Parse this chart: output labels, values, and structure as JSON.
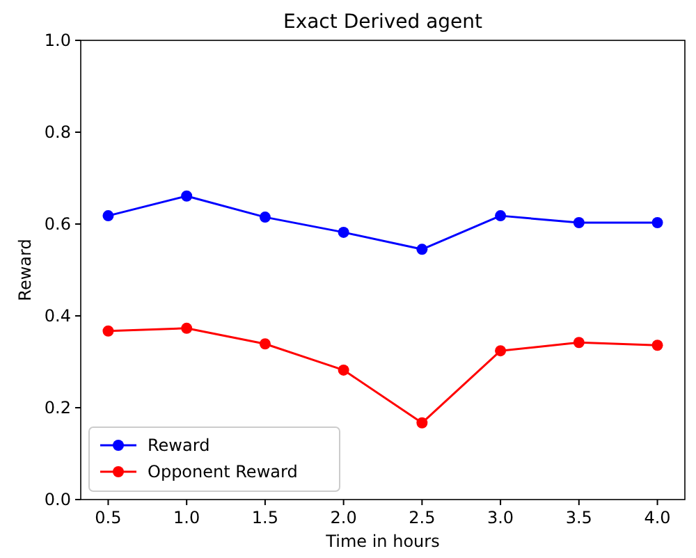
{
  "chart_data": {
    "type": "line",
    "title": "Exact Derived agent",
    "xlabel": "Time in hours",
    "ylabel": "Reward",
    "x": [
      0.5,
      1.0,
      1.5,
      2.0,
      2.5,
      3.0,
      3.5,
      4.0
    ],
    "series": [
      {
        "name": "Reward",
        "color": "#0000ff",
        "values": [
          0.618,
          0.661,
          0.615,
          0.582,
          0.545,
          0.618,
          0.603,
          0.603
        ]
      },
      {
        "name": "Opponent Reward",
        "color": "#ff0000",
        "values": [
          0.367,
          0.373,
          0.339,
          0.282,
          0.167,
          0.324,
          0.342,
          0.336
        ]
      }
    ],
    "xlim": [
      0.325,
      4.175
    ],
    "ylim": [
      0,
      1
    ],
    "xticks": [
      {
        "value": 0.5,
        "label": "0.5"
      },
      {
        "value": 1,
        "label": "1.0"
      },
      {
        "value": 1.5,
        "label": "1.5"
      },
      {
        "value": 2,
        "label": "2.0"
      },
      {
        "value": 2.5,
        "label": "2.5"
      },
      {
        "value": 3,
        "label": "3.0"
      },
      {
        "value": 3.5,
        "label": "3.5"
      },
      {
        "value": 4,
        "label": "4.0"
      }
    ],
    "yticks": [
      {
        "value": 0,
        "label": "0.0"
      },
      {
        "value": 0.2,
        "label": "0.2"
      },
      {
        "value": 0.4,
        "label": "0.4"
      },
      {
        "value": 0.6,
        "label": "0.6"
      },
      {
        "value": 0.8,
        "label": "0.8"
      },
      {
        "value": 1,
        "label": "1.0"
      }
    ],
    "legend": "bottom left",
    "marker": "circle",
    "line_style": "solid",
    "grid": false
  }
}
